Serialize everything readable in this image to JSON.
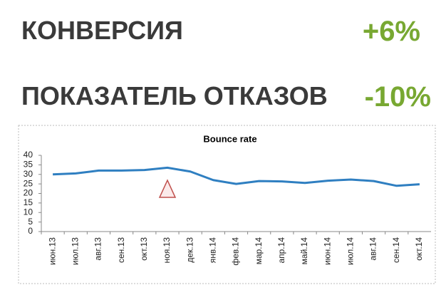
{
  "kpis": [
    {
      "label": "КОНВЕРСИЯ",
      "value": "+6%"
    },
    {
      "label": "ПОКАЗАТЕЛЬ ОТКАЗОВ",
      "value": "-10%"
    }
  ],
  "chart_data": {
    "type": "line",
    "title": "Bounce rate",
    "categories": [
      "июн.13",
      "июл.13",
      "авг.13",
      "сен.13",
      "окт.13",
      "ноя.13",
      "дек.13",
      "янв.14",
      "фев.14",
      "мар.14",
      "апр.14",
      "май.14",
      "июн.14",
      "июл.14",
      "авг.14",
      "сен.14",
      "окт.14"
    ],
    "values": [
      30,
      30.5,
      32,
      32,
      32.3,
      33.5,
      31.5,
      27,
      25,
      26.5,
      26.3,
      25.5,
      26.7,
      27.3,
      26.5,
      24,
      24.8
    ],
    "color": "#2f7fc1",
    "ylim": [
      0,
      40
    ],
    "yticks": [
      0,
      5,
      10,
      15,
      20,
      25,
      30,
      35,
      40
    ],
    "grid": false
  }
}
